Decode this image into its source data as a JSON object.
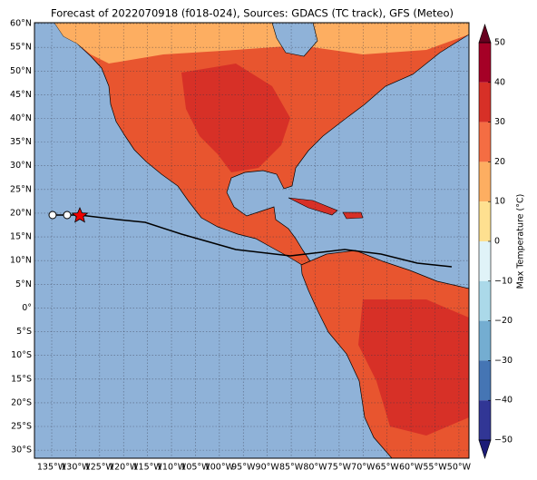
{
  "map": {
    "title": "Forecast of 2022070918 (f018-024), Sources: GDACS (TC track), GFS (Meteo)",
    "lon_lim": [
      -138.6,
      -47.9
    ],
    "lat_lim": [
      -31.7,
      60.2
    ],
    "lon_ticks": [
      {
        "value": -135,
        "label": "135°W"
      },
      {
        "value": -130,
        "label": "130°W"
      },
      {
        "value": -125,
        "label": "125°W"
      },
      {
        "value": -120,
        "label": "120°W"
      },
      {
        "value": -115,
        "label": "115°W"
      },
      {
        "value": -110,
        "label": "110°W"
      },
      {
        "value": -105,
        "label": "105°W"
      },
      {
        "value": -100,
        "label": "100°W"
      },
      {
        "value": -95,
        "label": "95°W"
      },
      {
        "value": -90,
        "label": "90°W"
      },
      {
        "value": -85,
        "label": "85°W"
      },
      {
        "value": -80,
        "label": "80°W"
      },
      {
        "value": -75,
        "label": "75°W"
      },
      {
        "value": -70,
        "label": "70°W"
      },
      {
        "value": -65,
        "label": "65°W"
      },
      {
        "value": -60,
        "label": "60°W"
      },
      {
        "value": -55,
        "label": "55°W"
      },
      {
        "value": -50,
        "label": "50°W"
      }
    ],
    "lat_ticks": [
      {
        "value": 60,
        "label": "60°N"
      },
      {
        "value": 55,
        "label": "55°N"
      },
      {
        "value": 50,
        "label": "50°N"
      },
      {
        "value": 45,
        "label": "45°N"
      },
      {
        "value": 40,
        "label": "40°N"
      },
      {
        "value": 35,
        "label": "35°N"
      },
      {
        "value": 30,
        "label": "30°N"
      },
      {
        "value": 25,
        "label": "25°N"
      },
      {
        "value": 20,
        "label": "20°N"
      },
      {
        "value": 15,
        "label": "15°N"
      },
      {
        "value": 10,
        "label": "10°N"
      },
      {
        "value": 5,
        "label": "5°N"
      },
      {
        "value": 0,
        "label": "0°"
      },
      {
        "value": -5,
        "label": "5°S"
      },
      {
        "value": -10,
        "label": "10°S"
      },
      {
        "value": -15,
        "label": "15°S"
      },
      {
        "value": -20,
        "label": "20°S"
      },
      {
        "value": -25,
        "label": "25°S"
      },
      {
        "value": -30,
        "label": "30°S"
      }
    ],
    "colorbar": {
      "label": "Max Temperature (°C)",
      "ticks": [
        50,
        40,
        30,
        20,
        10,
        0,
        {
          "value": -10,
          "label": "−10"
        },
        {
          "value": -20,
          "label": "−20"
        },
        {
          "value": -30,
          "label": "−30"
        },
        {
          "value": -40,
          "label": "−40"
        },
        {
          "value": -50,
          "label": "−50"
        }
      ],
      "colors": [
        "#a50026",
        "#d73027",
        "#f46d43",
        "#fdae61",
        "#fee090",
        "#e0f3f8",
        "#abd9e9",
        "#74add1",
        "#4575b4",
        "#313695"
      ],
      "extend_colors": [
        "#67001f",
        "#1c1c78"
      ]
    }
  }
}
